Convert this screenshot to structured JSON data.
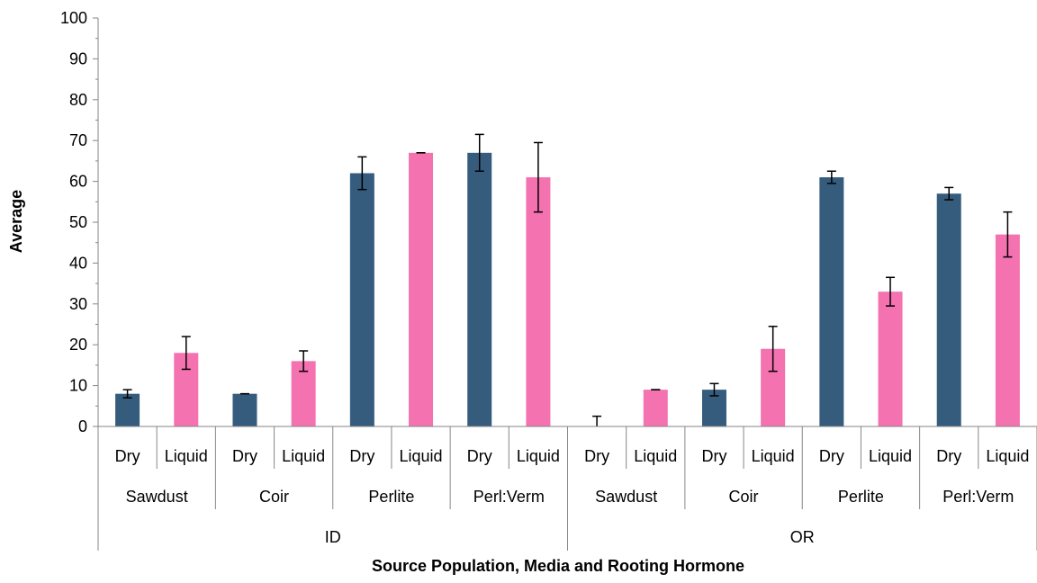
{
  "chart_data": {
    "type": "bar",
    "title": "",
    "xlabel": "Source Population, Media and Rooting Hormone",
    "ylabel": "Average",
    "ylim": [
      0,
      100
    ],
    "y_ticks": [
      "0",
      "10",
      "20",
      "30",
      "40",
      "50",
      "60",
      "70",
      "80",
      "90",
      "100"
    ],
    "grid": false,
    "legend": "none",
    "colors": {
      "Dry": "#355C7D",
      "Liquid": "#F472B0"
    },
    "populations": [
      "ID",
      "OR"
    ],
    "media": [
      "Sawdust",
      "Coir",
      "Perlite",
      "Perl:Verm"
    ],
    "hormones": [
      "Dry",
      "Liquid"
    ],
    "bars": [
      {
        "population": "ID",
        "media": "Sawdust",
        "hormone": "Dry",
        "value": 8,
        "error": 1
      },
      {
        "population": "ID",
        "media": "Sawdust",
        "hormone": "Liquid",
        "value": 18,
        "error": 4
      },
      {
        "population": "ID",
        "media": "Coir",
        "hormone": "Dry",
        "value": 8,
        "error": 0
      },
      {
        "population": "ID",
        "media": "Coir",
        "hormone": "Liquid",
        "value": 16,
        "error": 2.5
      },
      {
        "population": "ID",
        "media": "Perlite",
        "hormone": "Dry",
        "value": 62,
        "error": 4
      },
      {
        "population": "ID",
        "media": "Perlite",
        "hormone": "Liquid",
        "value": 67,
        "error": 0
      },
      {
        "population": "ID",
        "media": "Perl:Verm",
        "hormone": "Dry",
        "value": 67,
        "error": 4.5
      },
      {
        "population": "ID",
        "media": "Perl:Verm",
        "hormone": "Liquid",
        "value": 61,
        "error": 8.5
      },
      {
        "population": "OR",
        "media": "Sawdust",
        "hormone": "Dry",
        "value": 0,
        "error": 2.5
      },
      {
        "population": "OR",
        "media": "Sawdust",
        "hormone": "Liquid",
        "value": 9,
        "error": 0
      },
      {
        "population": "OR",
        "media": "Coir",
        "hormone": "Dry",
        "value": 9,
        "error": 1.5
      },
      {
        "population": "OR",
        "media": "Coir",
        "hormone": "Liquid",
        "value": 19,
        "error": 5.5
      },
      {
        "population": "OR",
        "media": "Perlite",
        "hormone": "Dry",
        "value": 61,
        "error": 1.5
      },
      {
        "population": "OR",
        "media": "Perlite",
        "hormone": "Liquid",
        "value": 33,
        "error": 3.5
      },
      {
        "population": "OR",
        "media": "Perl:Verm",
        "hormone": "Dry",
        "value": 57,
        "error": 1.5
      },
      {
        "population": "OR",
        "media": "Perl:Verm",
        "hormone": "Liquid",
        "value": 47,
        "error": 5.5
      }
    ]
  }
}
